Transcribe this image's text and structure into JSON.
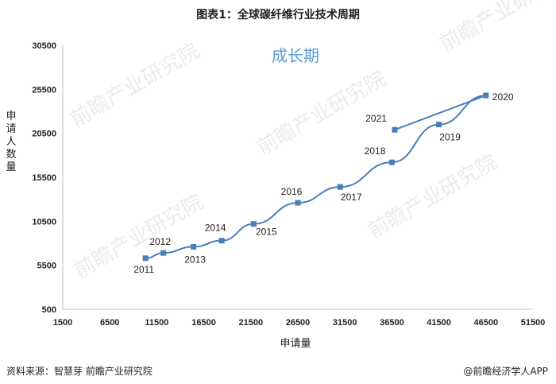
{
  "title": "图表1：全球碳纤维行业技术周期",
  "footer": {
    "source": "资料来源：智慧芽 前瞻产业研究院",
    "brand": "@前瞻经济学人APP",
    "watermark": "前瞻产业研究院"
  },
  "colors": {
    "series": "#4a7ebb",
    "phase_text": "#5b9bd5",
    "axis": "#bfbfbf"
  },
  "chart_data": {
    "type": "scatter",
    "phase_label": "成长期",
    "xlabel": "申请量",
    "ylabel": "申请人数量",
    "xlim": [
      1500,
      51500
    ],
    "ylim": [
      500,
      30500
    ],
    "xticks": [
      1500,
      6500,
      11500,
      16500,
      21500,
      26500,
      31500,
      36500,
      41500,
      46500,
      51500
    ],
    "yticks": [
      500,
      5500,
      10500,
      15500,
      20500,
      25500,
      30500
    ],
    "grid": false,
    "legend": "none",
    "series": [
      {
        "points": [
          {
            "label": "2011",
            "x": 10300,
            "y": 6300
          },
          {
            "label": "2012",
            "x": 12200,
            "y": 6900
          },
          {
            "label": "2013",
            "x": 15400,
            "y": 7600
          },
          {
            "label": "2014",
            "x": 18400,
            "y": 8300
          },
          {
            "label": "2015",
            "x": 21800,
            "y": 10200
          },
          {
            "label": "2016",
            "x": 26500,
            "y": 12600
          },
          {
            "label": "2017",
            "x": 31000,
            "y": 14400
          },
          {
            "label": "2018",
            "x": 36500,
            "y": 17200
          },
          {
            "label": "2019",
            "x": 41500,
            "y": 21500
          },
          {
            "label": "2020",
            "x": 46500,
            "y": 24800
          },
          {
            "label": "2021",
            "x": 36800,
            "y": 20900
          }
        ]
      }
    ]
  }
}
